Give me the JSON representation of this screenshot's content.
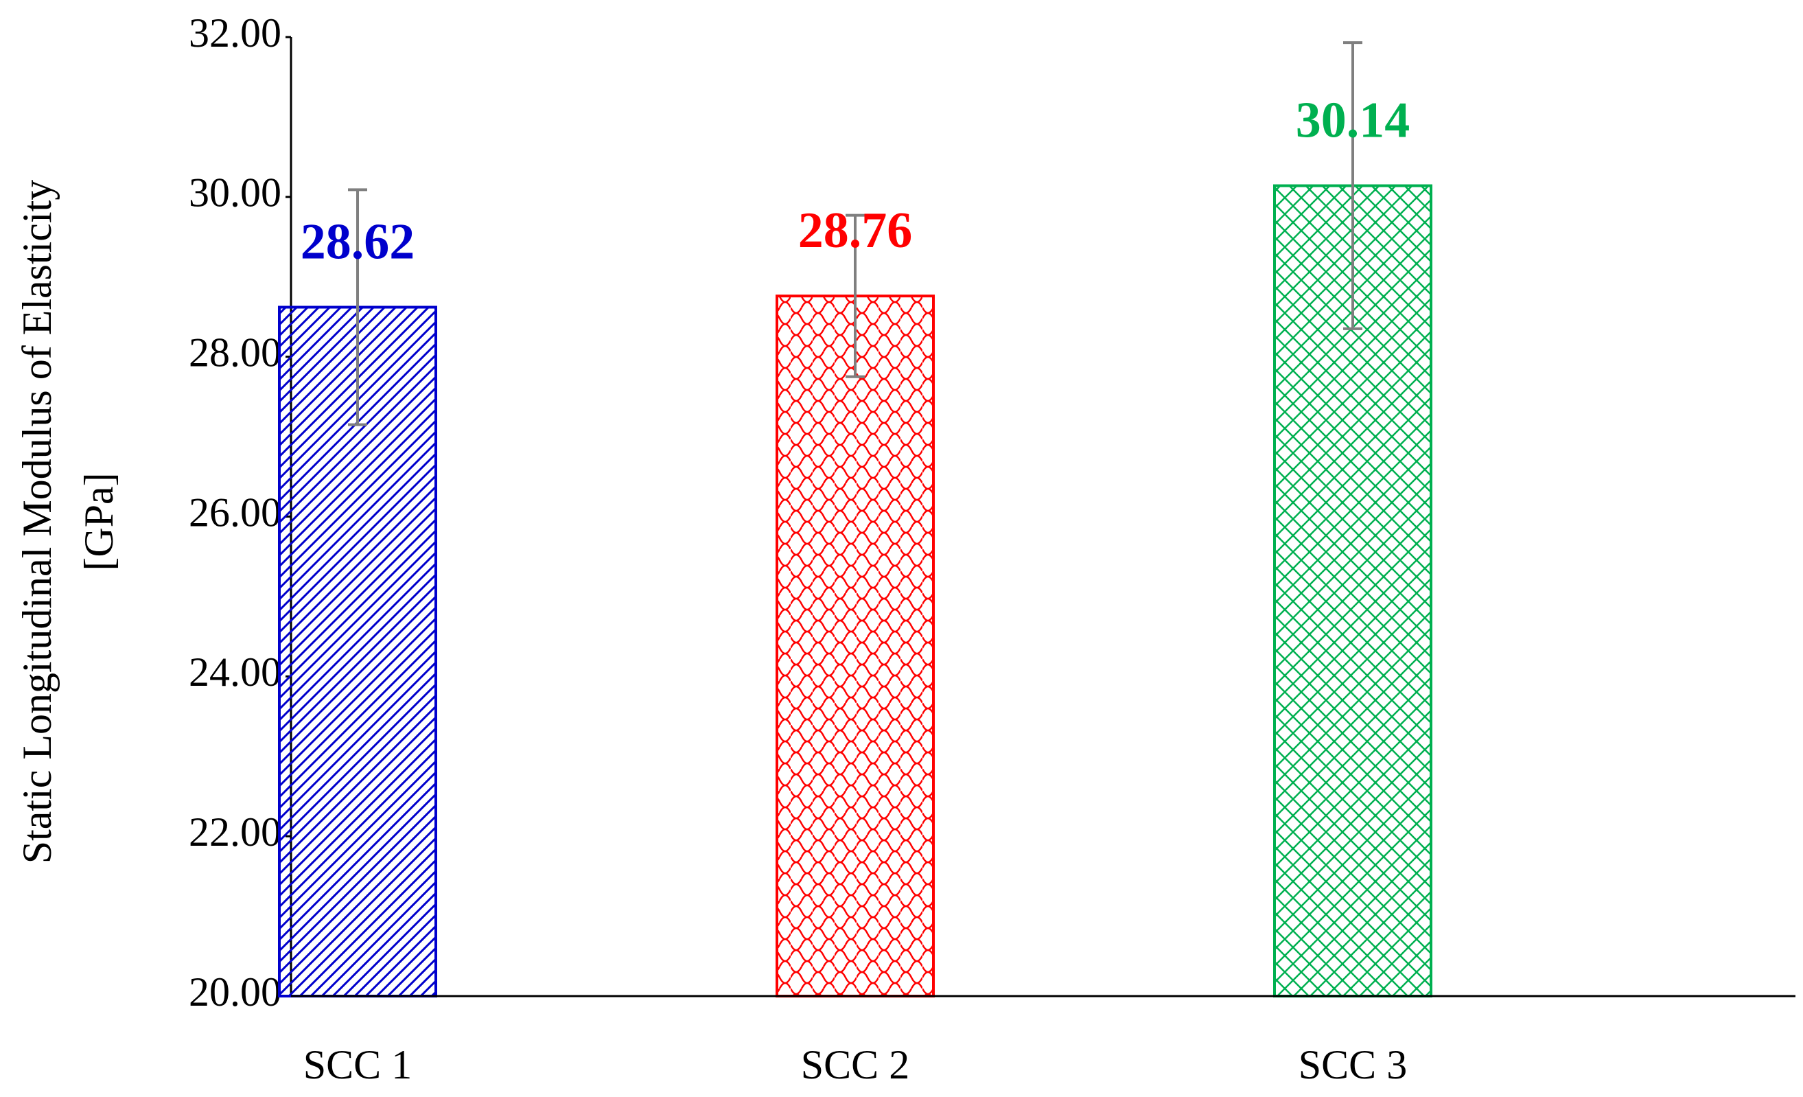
{
  "chart_data": {
    "type": "bar",
    "y_label": [
      "Static Longitudinal Modulus of Elasticity",
      "[GPa]"
    ],
    "categories": [
      "SCC 1",
      "SCC 2",
      "SCC 3"
    ],
    "values": [
      28.62,
      28.76,
      30.14
    ],
    "errors": [
      1.47,
      1.01,
      1.79
    ],
    "colors": [
      "#0000cc",
      "#ff0000",
      "#00b050"
    ],
    "error_color": "#7f7f7f",
    "ylim": [
      20,
      32
    ],
    "yticks": [
      {
        "value": 20,
        "label": "20.00"
      },
      {
        "value": 22,
        "label": "22.00"
      },
      {
        "value": 24,
        "label": "24.00"
      },
      {
        "value": 26,
        "label": "26.00"
      },
      {
        "value": 28,
        "label": "28.00"
      },
      {
        "value": 30,
        "label": "30.00"
      },
      {
        "value": 32,
        "label": "32.00"
      }
    ]
  }
}
